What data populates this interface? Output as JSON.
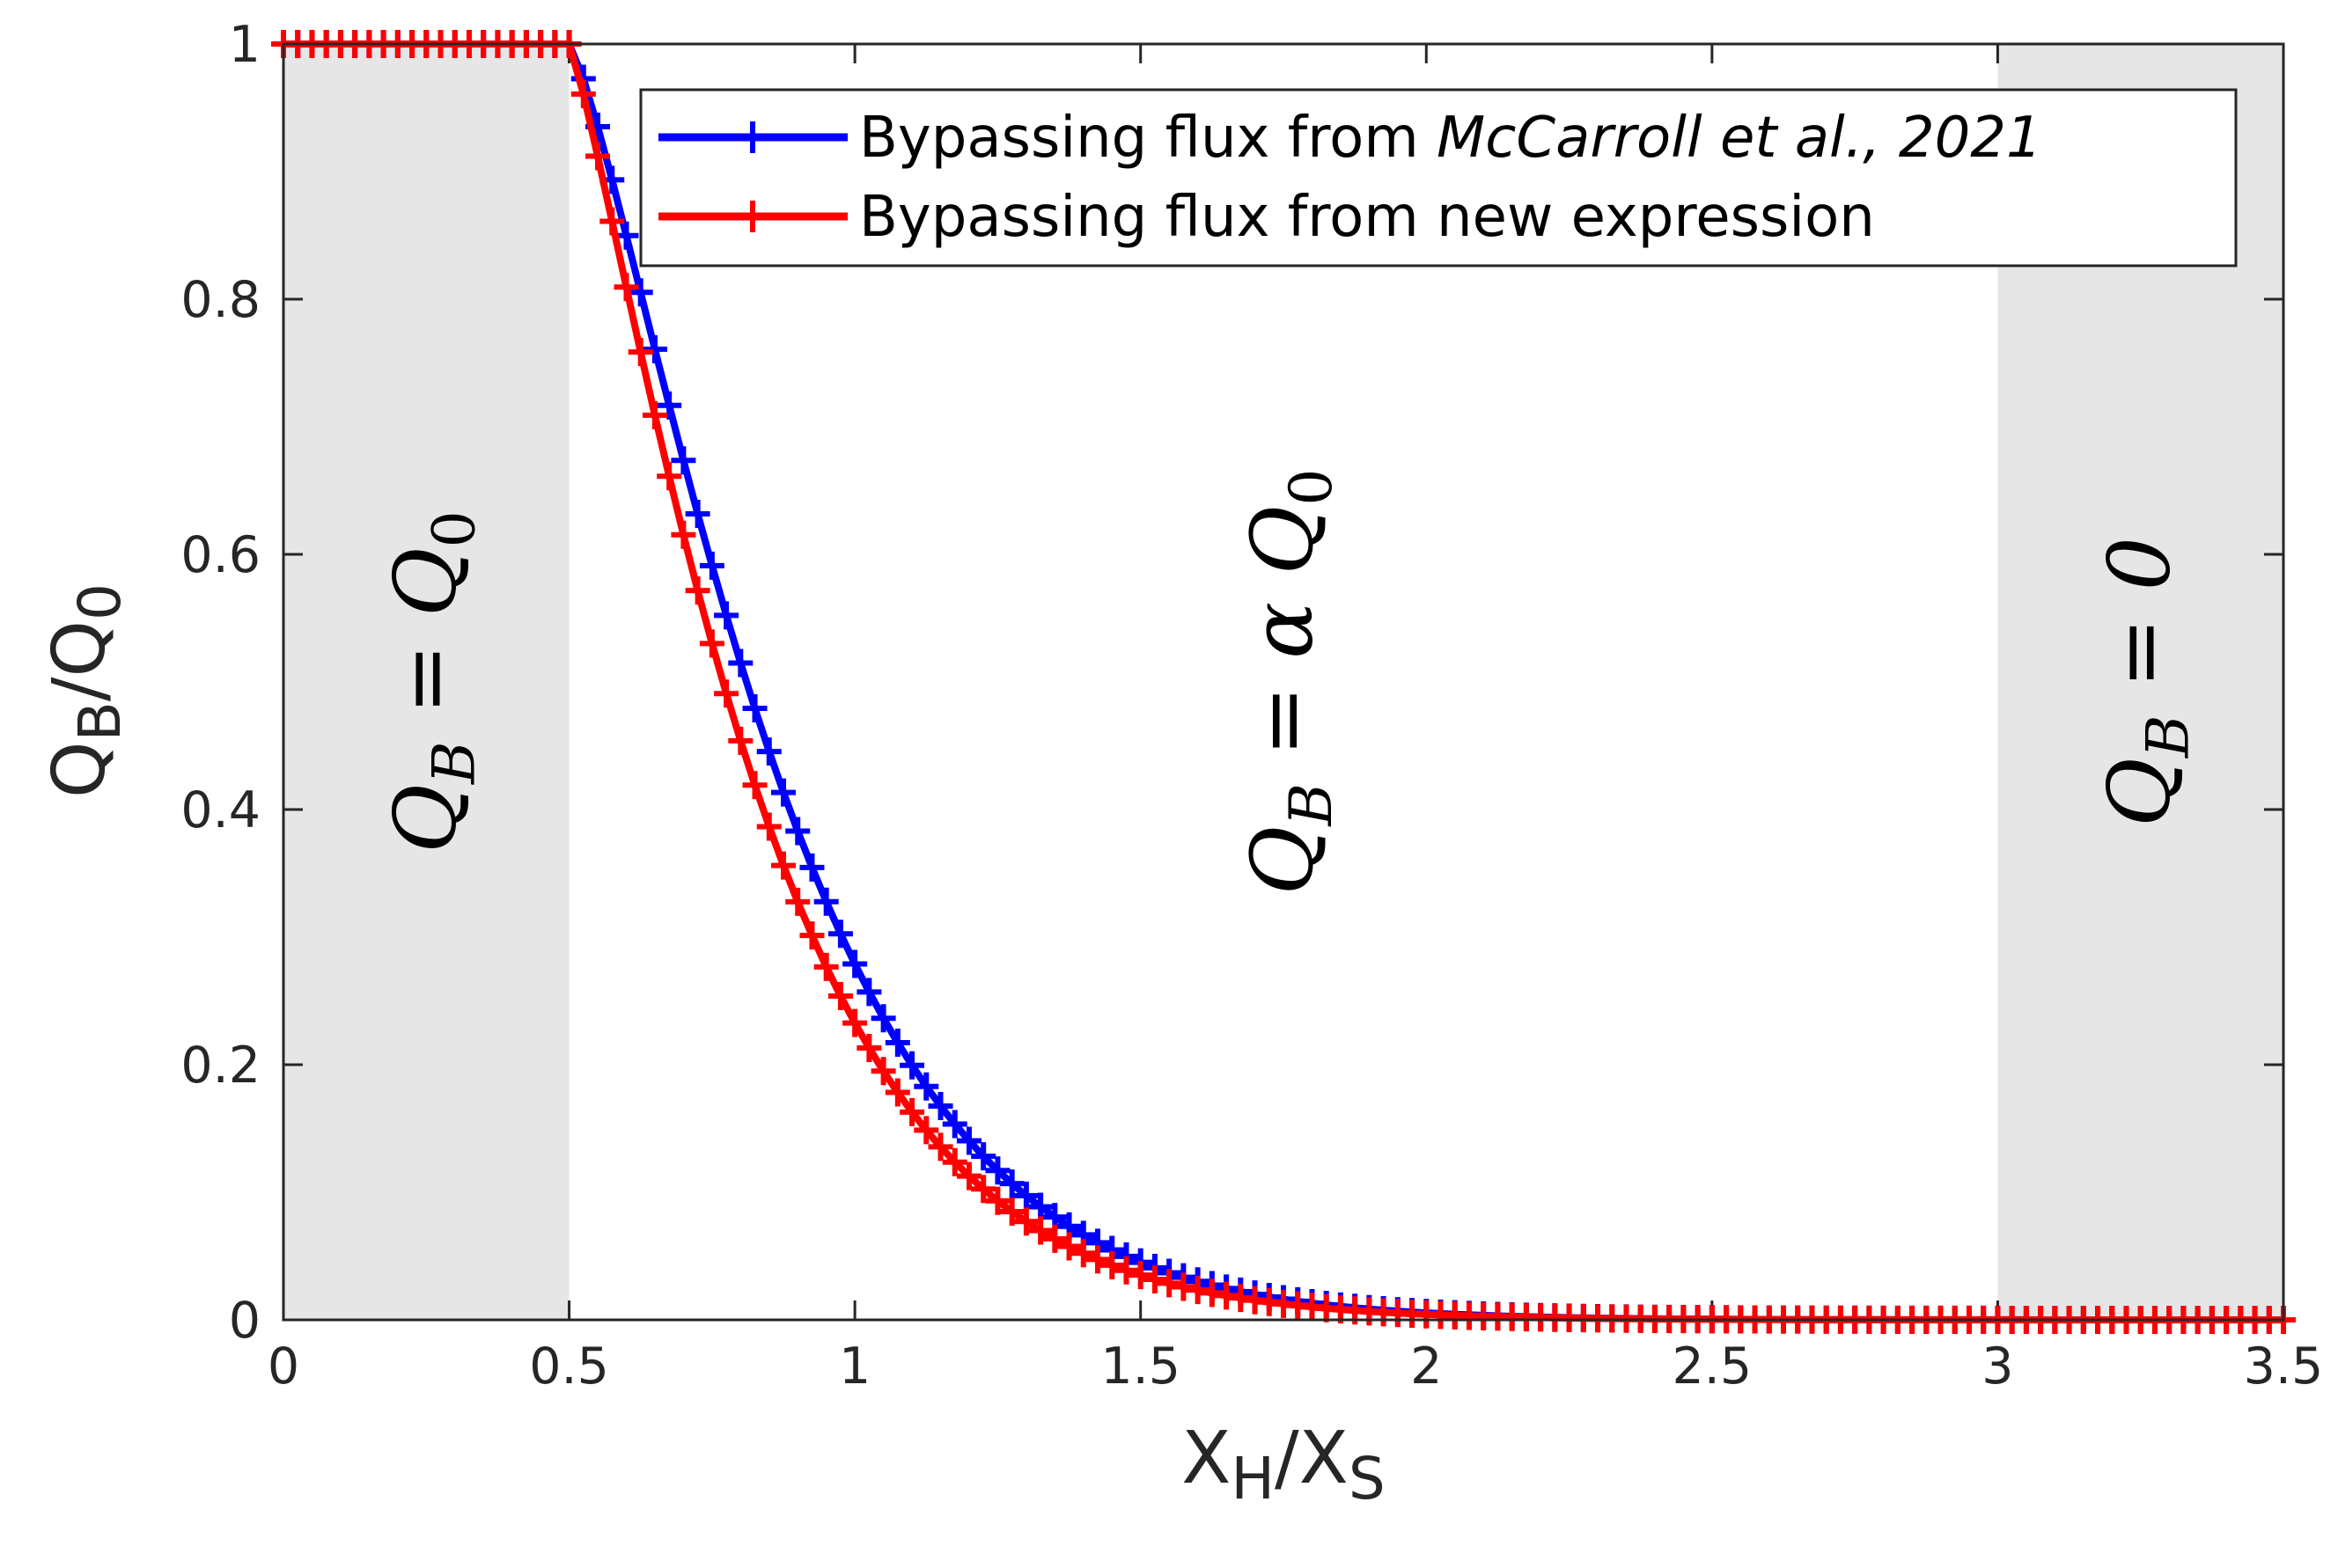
{
  "chart_data": {
    "type": "line",
    "xlabel_main": "X",
    "xlabel_sub1": "H",
    "xlabel_mid": "/X",
    "xlabel_sub2": "S",
    "ylabel_main": "Q",
    "ylabel_sub1": "B",
    "ylabel_mid": "/Q",
    "ylabel_sub2": "0",
    "xlim": [
      0,
      3.5
    ],
    "ylim": [
      0,
      1
    ],
    "xticks": [
      0,
      0.5,
      1,
      1.5,
      2,
      2.5,
      3,
      3.5
    ],
    "xtick_labels": [
      "0",
      "0.5",
      "1",
      "1.5",
      "2",
      "2.5",
      "3",
      "3.5"
    ],
    "yticks": [
      0,
      0.2,
      0.4,
      0.6,
      0.8,
      1
    ],
    "ytick_labels": [
      "0",
      "0.2",
      "0.4",
      "0.6",
      "0.8",
      "1"
    ],
    "shaded_regions": [
      {
        "x_start": 0,
        "x_end": 0.5,
        "color": "#e6e6e6"
      },
      {
        "x_start": 3,
        "x_end": 3.5,
        "color": "#e6e6e6"
      }
    ],
    "region_labels": [
      {
        "q": "Q",
        "sub": "B",
        "eq": " = ",
        "rhs": "Q",
        "rhs_sub": "0",
        "x_center": 0.25,
        "y_center": 0.5
      },
      {
        "q": "Q",
        "sub": "B",
        "eq": " = ",
        "rhs": "α Q",
        "rhs_sub": "0",
        "x_center": 1.75,
        "y_center": 0.5
      },
      {
        "q": "Q",
        "sub": "B",
        "eq": " = ",
        "rhs": "0",
        "rhs_sub": "",
        "x_center": 3.25,
        "y_center": 0.5
      }
    ],
    "series": [
      {
        "name_plain": "Bypassing flux from ",
        "name_italic": "McCarroll et al., 2021",
        "color": "#0000ff",
        "x0": 0.5,
        "decay": 3.1,
        "power": 1.28
      },
      {
        "name_plain": "Bypassing flux from new expression",
        "name_italic": "",
        "color": "#ff0000",
        "x0": 0.5,
        "decay": 3.35,
        "power": 1.2
      }
    ],
    "x_step": 0.025,
    "legend_position": "top-right"
  }
}
